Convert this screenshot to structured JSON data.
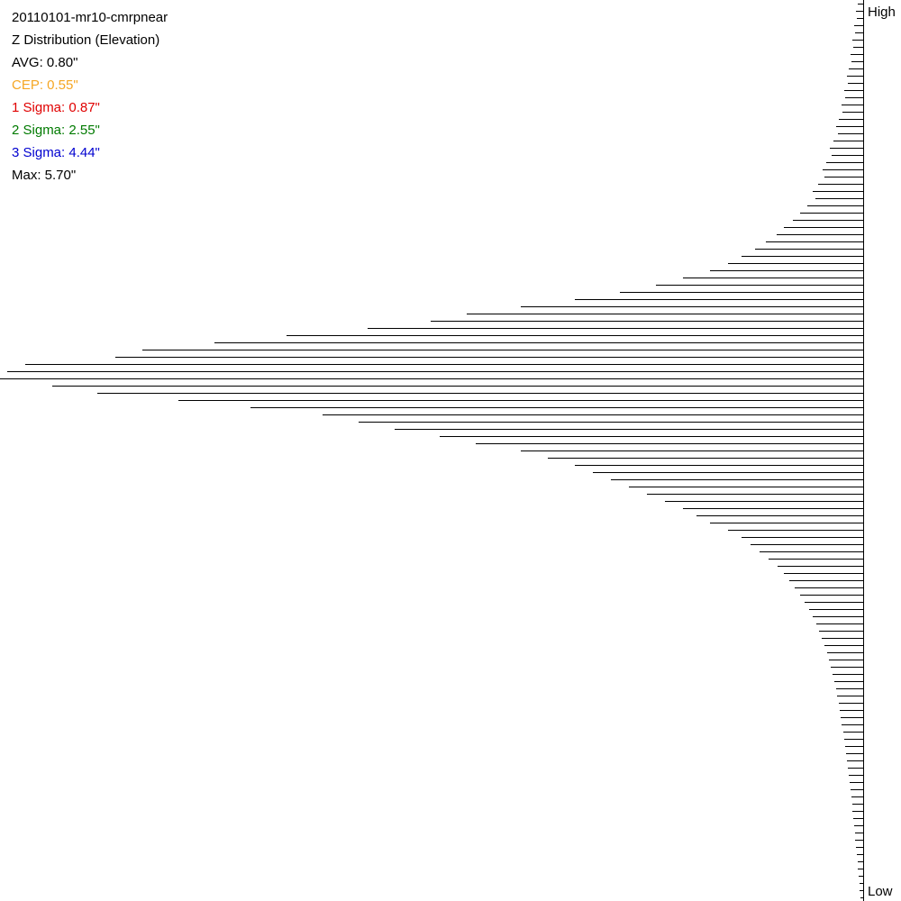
{
  "chart_data": {
    "type": "hbar-histogram",
    "annotations": [
      {
        "text": "20110101-mr10-cmrpnear",
        "color": "#000000"
      },
      {
        "text": "Z Distribution (Elevation)",
        "color": "#000000"
      },
      {
        "text": "AVG: 0.80\"",
        "color": "#000000"
      },
      {
        "text": "CEP: 0.55\"",
        "color": "#f5a623"
      },
      {
        "text": "1 Sigma: 0.87\"",
        "color": "#e00000"
      },
      {
        "text": "2 Sigma: 2.55\"",
        "color": "#007a00"
      },
      {
        "text": "3 Sigma: 4.44\"",
        "color": "#0000d0"
      },
      {
        "text": "Max: 5.70\"",
        "color": "#000000"
      }
    ],
    "axis_ends": [
      "High",
      "Low"
    ],
    "color": "#000000",
    "xlim": [
      0,
      958
    ],
    "values": [
      6,
      8,
      7,
      10,
      9,
      12,
      11,
      14,
      13,
      16,
      18,
      17,
      21,
      20,
      24,
      23,
      27,
      30,
      28,
      33,
      37,
      35,
      41,
      45,
      43,
      50,
      56,
      53,
      62,
      70,
      78,
      88,
      96,
      108,
      120,
      135,
      150,
      170,
      200,
      230,
      270,
      320,
      380,
      440,
      480,
      550,
      640,
      720,
      800,
      830,
      930,
      950,
      958,
      900,
      850,
      760,
      680,
      600,
      560,
      520,
      470,
      430,
      380,
      350,
      320,
      300,
      280,
      260,
      240,
      220,
      200,
      185,
      170,
      150,
      135,
      125,
      115,
      105,
      95,
      88,
      82,
      76,
      70,
      65,
      60,
      56,
      52,
      49,
      46,
      43,
      40,
      38,
      36,
      34,
      32,
      30,
      29,
      27,
      26,
      25,
      24,
      22,
      21,
      20,
      19,
      18,
      17,
      16,
      15,
      14,
      13,
      12,
      12,
      11,
      10,
      9,
      9,
      8,
      7,
      6,
      6,
      5,
      4,
      4,
      3
    ]
  }
}
